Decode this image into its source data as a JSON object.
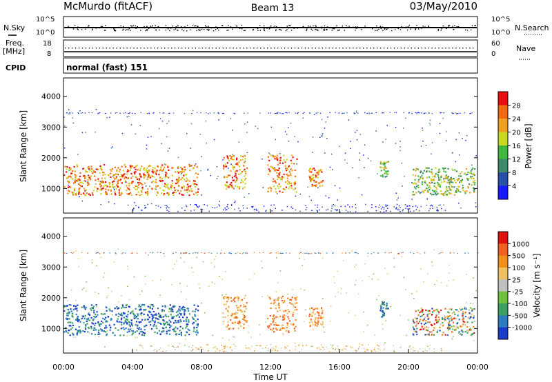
{
  "header": {
    "station": "McMurdo (fitACF)",
    "beam": "Beam 13",
    "date": "03/May/2010"
  },
  "noise_panel": {
    "left_label": "N.Sky",
    "right_label": "N.Search",
    "ticks_left": [
      "10^5",
      "10^0"
    ],
    "ticks_right": [
      "10^5",
      "10^0"
    ]
  },
  "freq_panel": {
    "left_label_1": "Freq.",
    "left_label_2": "[MHz]",
    "right_label": "Nave",
    "ticks_left": [
      "18",
      "8"
    ],
    "ticks_right": [
      "60",
      "0"
    ]
  },
  "cpid": {
    "label": "CPID",
    "value": "normal (fast) 151"
  },
  "chart_data": [
    {
      "type": "heatmap",
      "title": "Power",
      "ylabel": "Slant Range [km]",
      "xlabel": "",
      "ylim": [
        200,
        4600
      ],
      "yticks": [
        "1000",
        "2000",
        "3000",
        "4000"
      ],
      "colorbar": {
        "label": "Power [dB]",
        "ticks": [
          "4",
          "8",
          "12",
          "16",
          "20",
          "24",
          "28"
        ],
        "colors": [
          "#1a1aff",
          "#2850a8",
          "#3c8a6c",
          "#40b840",
          "#c8d820",
          "#f0a020",
          "#f06a10",
          "#e81010"
        ]
      },
      "features": [
        {
          "t_start": 0.0,
          "t_end": 7.8,
          "range_low": 800,
          "range_high": 1800,
          "level": "high"
        },
        {
          "t_start": 9.2,
          "t_end": 10.6,
          "range_low": 1000,
          "range_high": 2100,
          "level": "high"
        },
        {
          "t_start": 11.8,
          "t_end": 13.5,
          "range_low": 900,
          "range_high": 2100,
          "level": "high"
        },
        {
          "t_start": 14.2,
          "t_end": 15.0,
          "range_low": 1100,
          "range_high": 1700,
          "level": "high"
        },
        {
          "t_start": 18.3,
          "t_end": 18.8,
          "range_low": 1400,
          "range_high": 1900,
          "level": "mid"
        },
        {
          "t_start": 20.2,
          "t_end": 23.8,
          "range_low": 800,
          "range_high": 1700,
          "level": "mid"
        }
      ]
    },
    {
      "type": "heatmap",
      "title": "Velocity",
      "ylabel": "Slant Range [km]",
      "xlabel": "Time UT",
      "ylim": [
        200,
        4600
      ],
      "yticks": [
        "1000",
        "2000",
        "3000",
        "4000"
      ],
      "xticks": [
        "00:00",
        "04:00",
        "08:00",
        "12:00",
        "16:00",
        "20:00",
        "00:00"
      ],
      "colorbar": {
        "label": "Velocity [m s⁻¹]",
        "ticks": [
          "1000",
          "500",
          "100",
          "25",
          "-25",
          "-100",
          "-500",
          "-1000"
        ],
        "colors": [
          "#1a3cc8",
          "#2e7cc0",
          "#3ea060",
          "#70c040",
          "#c0c0c0",
          "#f0c060",
          "#f0901a",
          "#f06020",
          "#e01010"
        ]
      },
      "features": [
        {
          "t_start": 0.0,
          "t_end": 7.8,
          "range_low": 800,
          "range_high": 1800,
          "level": "toward"
        },
        {
          "t_start": 9.2,
          "t_end": 10.6,
          "range_low": 1000,
          "range_high": 2100,
          "level": "away"
        },
        {
          "t_start": 11.8,
          "t_end": 13.5,
          "range_low": 900,
          "range_high": 2100,
          "level": "away"
        },
        {
          "t_start": 14.2,
          "t_end": 15.0,
          "range_low": 1100,
          "range_high": 1700,
          "level": "away"
        },
        {
          "t_start": 18.3,
          "t_end": 18.8,
          "range_low": 1400,
          "range_high": 1900,
          "level": "toward"
        },
        {
          "t_start": 20.2,
          "t_end": 23.8,
          "range_low": 800,
          "range_high": 1700,
          "level": "mixed"
        }
      ]
    }
  ]
}
